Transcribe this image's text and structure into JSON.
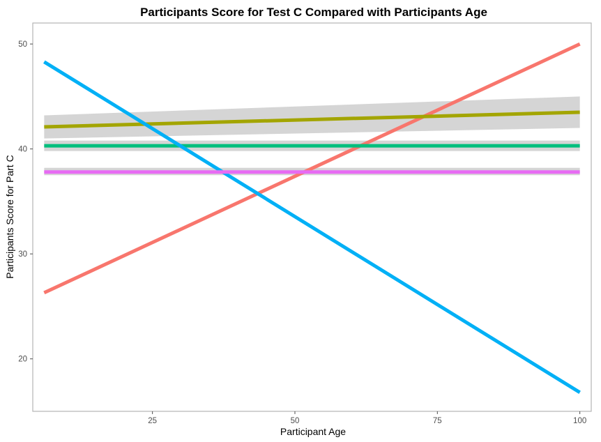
{
  "chart_data": {
    "type": "line",
    "title": "Participants Score for Test C Compared with Participants Age",
    "xlabel": "Participant Age",
    "ylabel": "Participants Score for Part C",
    "xlim": [
      4,
      102
    ],
    "ylim": [
      15,
      52
    ],
    "x_ticks": [
      25,
      50,
      75,
      100
    ],
    "y_ticks": [
      20,
      30,
      40,
      50
    ],
    "grid": false,
    "legend": "none",
    "series": [
      {
        "color": "#F8766D",
        "x": [
          6,
          100
        ],
        "y": [
          26.3,
          50.0
        ],
        "band_lo": [
          26.3,
          50.0
        ],
        "band_hi": [
          26.3,
          50.0
        ]
      },
      {
        "color": "#A3A500",
        "x": [
          6,
          100
        ],
        "y": [
          42.1,
          43.5
        ],
        "band_lo": [
          41.0,
          42.0
        ],
        "band_hi": [
          43.2,
          45.0
        ]
      },
      {
        "color": "#00BF7D",
        "x": [
          6,
          100
        ],
        "y": [
          40.3,
          40.3
        ],
        "band_lo": [
          39.8,
          39.8
        ],
        "band_hi": [
          40.8,
          40.8
        ]
      },
      {
        "color": "#00B0F6",
        "x": [
          6,
          100
        ],
        "y": [
          48.3,
          16.8
        ],
        "band_lo": [
          48.3,
          16.8
        ],
        "band_hi": [
          48.3,
          16.8
        ]
      },
      {
        "color": "#E76BF3",
        "x": [
          6,
          100
        ],
        "y": [
          37.8,
          37.8
        ],
        "band_lo": [
          37.5,
          37.5
        ],
        "band_hi": [
          38.2,
          38.2
        ]
      }
    ]
  }
}
